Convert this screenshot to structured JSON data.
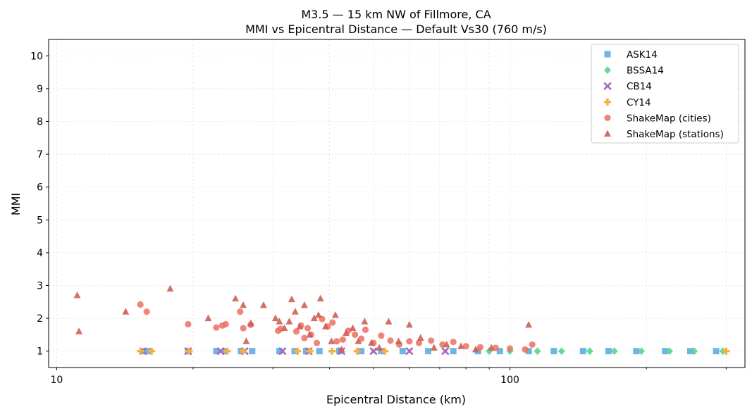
{
  "chart_data": {
    "type": "scatter",
    "title": "M3.5 — 15 km NW of Fillmore, CA",
    "subtitle": "MMI vs Epicentral Distance — Default Vs30 (760 m/s)",
    "xlabel": "Epicentral Distance (km)",
    "ylabel": "MMI",
    "xscale": "log",
    "xlim": [
      9.6,
      330
    ],
    "ylim": [
      0.5,
      10.5
    ],
    "x_tick_labels": [
      "10",
      "100"
    ],
    "y_tick_labels": [
      "1",
      "2",
      "3",
      "4",
      "5",
      "6",
      "7",
      "8",
      "9",
      "10"
    ],
    "grid": true,
    "legend_position": "top-right",
    "series": [
      {
        "name": "ASK14",
        "marker": "square",
        "color": "#5DADE2",
        "x": [
          15.5,
          16.0,
          19.5,
          22.5,
          23.5,
          25.5,
          27.0,
          31.0,
          33.5,
          35.5,
          38.0,
          42.0,
          47.0,
          52.0,
          58.0,
          66.0,
          75.0,
          85.0,
          95.0,
          110.0,
          125.0,
          145.0,
          165.0,
          190.0,
          220.0,
          250.0,
          285.0
        ],
        "y": [
          1,
          1,
          1,
          1,
          1,
          1,
          1,
          1,
          1,
          1,
          1,
          1,
          1,
          1,
          1,
          1,
          1,
          1,
          1,
          1,
          1,
          1,
          1,
          1,
          1,
          1,
          1
        ]
      },
      {
        "name": "BSSA14",
        "marker": "diamond",
        "color": "#58D68D",
        "x": [
          90.0,
          100.0,
          115.0,
          130.0,
          150.0,
          170.0,
          195.0,
          225.0,
          255.0,
          295.0
        ],
        "y": [
          1,
          1,
          1,
          1,
          1,
          1,
          1,
          1,
          1,
          1
        ]
      },
      {
        "name": "CB14",
        "marker": "x",
        "color": "#A569BD",
        "x": [
          15.5,
          19.5,
          23.0,
          26.0,
          31.5,
          36.0,
          42.5,
          50.0,
          60.0,
          72.0
        ],
        "y": [
          1,
          1,
          1,
          1,
          1,
          1,
          1,
          1,
          1,
          1
        ]
      },
      {
        "name": "CY14",
        "marker": "plus",
        "color": "#F5B041",
        "x": [
          15.3,
          16.2,
          19.6,
          23.8,
          25.8,
          34.0,
          36.2,
          40.5,
          46.0,
          53.0,
          300.0
        ],
        "y": [
          1,
          1,
          1,
          1,
          1,
          1,
          1,
          1,
          1,
          1,
          1
        ]
      },
      {
        "name": "ShakeMap (cities)",
        "marker": "circle",
        "color": "#EC7063",
        "x": [
          15.3,
          15.8,
          19.5,
          22.5,
          23.2,
          23.6,
          25.4,
          25.8,
          26.8,
          30.8,
          31.2,
          33.8,
          34.6,
          35.2,
          35.8,
          36.4,
          37.5,
          38.5,
          39.6,
          40.6,
          41.5,
          42.8,
          44.0,
          45.5,
          47.0,
          48.0,
          50.0,
          52.0,
          54.5,
          57.0,
          60.0,
          63.0,
          67.0,
          71.0,
          75.0,
          80.0,
          86.0,
          93.0,
          100.0,
          108.0,
          112.0
        ],
        "y": [
          2.42,
          2.2,
          1.82,
          1.72,
          1.78,
          1.82,
          2.2,
          1.7,
          1.8,
          1.62,
          1.68,
          1.6,
          1.78,
          1.4,
          1.7,
          1.5,
          1.25,
          1.98,
          1.75,
          1.87,
          1.3,
          1.35,
          1.62,
          1.5,
          1.38,
          1.65,
          1.25,
          1.47,
          1.32,
          1.2,
          1.3,
          1.25,
          1.32,
          1.2,
          1.28,
          1.15,
          1.12,
          1.1,
          1.08,
          1.05,
          1.2
        ]
      },
      {
        "name": "ShakeMap (stations)",
        "marker": "triangle",
        "color": "#CD6155",
        "x": [
          11.1,
          11.2,
          14.2,
          17.8,
          21.6,
          24.8,
          25.8,
          26.2,
          26.8,
          28.6,
          30.4,
          31.0,
          31.8,
          32.6,
          33.0,
          33.6,
          34.4,
          35.2,
          36.2,
          37.0,
          37.8,
          38.2,
          39.2,
          40.4,
          41.2,
          42.5,
          43.5,
          45.0,
          46.3,
          47.8,
          49.5,
          51.5,
          54.0,
          56.8,
          60.0,
          63.5,
          68.0,
          72.5,
          78.0,
          84.0,
          91.0,
          110.0
        ],
        "y": [
          2.7,
          1.6,
          2.2,
          2.9,
          2.0,
          2.6,
          2.4,
          1.3,
          1.85,
          2.4,
          2.0,
          1.9,
          1.7,
          1.9,
          2.58,
          2.2,
          1.75,
          2.4,
          1.5,
          2.0,
          2.1,
          2.6,
          1.75,
          1.3,
          2.1,
          1.05,
          1.55,
          1.7,
          1.3,
          1.9,
          1.25,
          1.1,
          1.9,
          1.3,
          1.8,
          1.4,
          1.1,
          1.2,
          1.15,
          1.05,
          1.1,
          1.8
        ]
      }
    ]
  }
}
